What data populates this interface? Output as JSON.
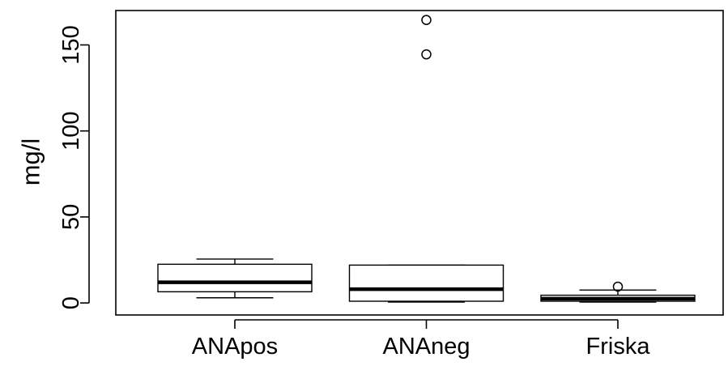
{
  "chart_data": {
    "type": "boxplot",
    "title": "",
    "xlabel": "",
    "ylabel": "mg/l",
    "ylim": [
      -7,
      170
    ],
    "y_ticks": [
      0,
      50,
      100,
      150
    ],
    "y_tick_labels": [
      "0",
      "50",
      "100",
      "150"
    ],
    "grid": false,
    "legend": "none",
    "categories": [
      "ANApos",
      "ANAneg",
      "Friska"
    ],
    "boxes": [
      {
        "category": "ANApos",
        "whisker_low": 3,
        "q1": 6.5,
        "median": 12,
        "q3": 22.5,
        "whisker_high": 25.5,
        "outliers": []
      },
      {
        "category": "ANAneg",
        "whisker_low": 0.5,
        "q1": 1,
        "median": 8,
        "q3": 22,
        "whisker_high": 22,
        "outliers": [
          144.5,
          164.5
        ]
      },
      {
        "category": "Friska",
        "whisker_low": 0.5,
        "q1": 1,
        "median": 2.5,
        "q3": 4.5,
        "whisker_high": 7.5,
        "outliers": [
          9.5
        ]
      }
    ],
    "colors": {
      "stroke": "#000000",
      "box_fill": "#ffffff",
      "background": "#ffffff"
    }
  }
}
